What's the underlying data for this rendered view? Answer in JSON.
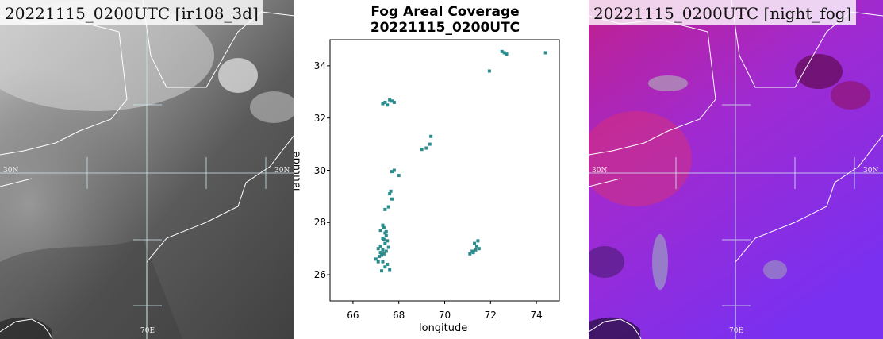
{
  "panels": {
    "left": {
      "title": "20221115_0200UTC [ir108_3d]",
      "grid_labels": {
        "lat_left": "30N",
        "lat_right": "30N",
        "lon_bottom": "70E"
      }
    },
    "right": {
      "title": "20221115_0200UTC [night_fog]",
      "grid_labels": {
        "lat_left": "30N",
        "lat_right": "30N",
        "lon_bottom": "70E"
      }
    }
  },
  "chart_data": {
    "type": "scatter",
    "title": "Fog Areal Coverage\n20221115_0200UTC",
    "title_line1": "Fog Areal Coverage",
    "title_line2": "20221115_0200UTC",
    "xlabel": "longitude",
    "ylabel": "latitude",
    "xlim": [
      65,
      75
    ],
    "ylim": [
      25,
      35
    ],
    "xticks": [
      66,
      68,
      70,
      72,
      74
    ],
    "yticks": [
      26,
      28,
      30,
      32,
      34
    ],
    "grid": false,
    "marker_color": "#2a8c8c",
    "series": [
      {
        "x": [
          67.4,
          67.6,
          67.7,
          67.5,
          67.8,
          67.3
        ],
        "y": [
          32.6,
          32.7,
          32.65,
          32.5,
          32.6,
          32.55
        ]
      },
      {
        "x": [
          69.0,
          69.2,
          69.35,
          69.4
        ],
        "y": [
          30.8,
          30.85,
          31.0,
          31.3
        ]
      },
      {
        "x": [
          67.7,
          67.8,
          68.0
        ],
        "y": [
          29.95,
          30.0,
          29.8
        ]
      },
      {
        "x": [
          67.6,
          67.65,
          67.7,
          67.55,
          67.4
        ],
        "y": [
          29.1,
          29.2,
          28.9,
          28.6,
          28.5
        ]
      },
      {
        "x": [
          67.3,
          67.35,
          67.2,
          67.4,
          67.45,
          67.3,
          67.5,
          67.4,
          67.2,
          67.1,
          67.3,
          67.45,
          67.35,
          67.25,
          67.15,
          67.0,
          67.3,
          67.5,
          67.4,
          67.6,
          67.55,
          67.2,
          67.1,
          67.35,
          67.45,
          67.25
        ],
        "y": [
          27.9,
          27.8,
          27.7,
          27.6,
          27.5,
          27.4,
          27.3,
          27.2,
          27.1,
          27.0,
          26.95,
          26.9,
          26.8,
          26.75,
          26.7,
          26.6,
          26.5,
          26.4,
          26.3,
          26.2,
          27.05,
          26.85,
          26.5,
          27.35,
          27.65,
          26.15
        ]
      },
      {
        "x": [
          71.1,
          71.25,
          71.35,
          71.4,
          71.3,
          71.2,
          71.5,
          71.45
        ],
        "y": [
          26.8,
          26.85,
          26.95,
          27.1,
          27.2,
          26.9,
          27.0,
          27.3
        ]
      },
      {
        "x": [
          72.5,
          72.6,
          72.7,
          74.4,
          71.95
        ],
        "y": [
          34.55,
          34.5,
          34.45,
          34.5,
          33.8
        ]
      }
    ]
  }
}
